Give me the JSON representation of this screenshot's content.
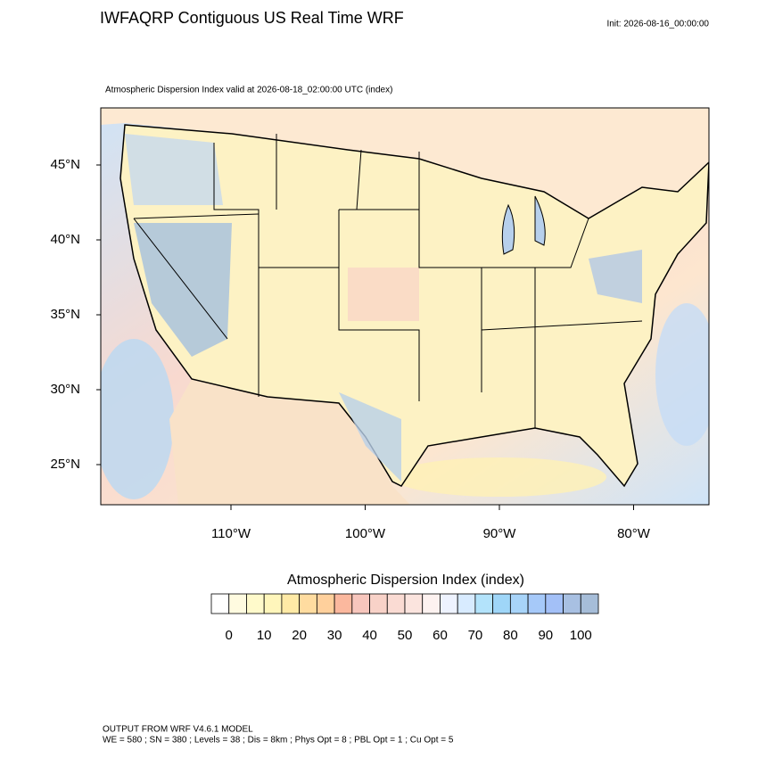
{
  "header": {
    "title": "IWFAQRP Contiguous US Real Time WRF",
    "init": "Init: 2026-08-16_00:00:00",
    "subtitle": "Atmospheric Dispersion Index valid at 2026-08-18_02:00:00 UTC   (index)"
  },
  "map": {
    "lat_ticks": [
      {
        "value": 45,
        "label": "45°N"
      },
      {
        "value": 40,
        "label": "40°N"
      },
      {
        "value": 35,
        "label": "35°N"
      },
      {
        "value": 30,
        "label": "30°N"
      },
      {
        "value": 25,
        "label": "25°N"
      }
    ],
    "lon_ticks": [
      {
        "value": -110,
        "label": "110°W"
      },
      {
        "value": -100,
        "label": "100°W"
      },
      {
        "value": -90,
        "label": "90°W"
      },
      {
        "value": -80,
        "label": "80°W"
      }
    ]
  },
  "colorbar": {
    "title": "Atmospheric Dispersion Index  (index)",
    "labels": [
      0,
      10,
      20,
      30,
      40,
      50,
      60,
      70,
      80,
      90,
      100
    ],
    "colors": [
      "#ffffff",
      "#fffbe0",
      "#fffacb",
      "#fff6bb",
      "#ffeaa6",
      "#ffdca0",
      "#ffd09c",
      "#fbb89e",
      "#f7c6bd",
      "#f8d2c8",
      "#fadbd3",
      "#fbe4de",
      "#fdf2f0",
      "#eef3ff",
      "#d8ebff",
      "#b3e3fb",
      "#9fd6f8",
      "#a8d4f9",
      "#a6c9f9",
      "#a3c0f7",
      "#a8c0e2",
      "#a6bdd8"
    ]
  },
  "footer": {
    "line1": "OUTPUT FROM WRF V4.6.1 MODEL",
    "line2": "WE = 580 ; SN = 380 ; Levels = 38 ; Dis = 8km ; Phys Opt = 8 ; PBL Opt = 1 ; Cu Opt = 5"
  }
}
